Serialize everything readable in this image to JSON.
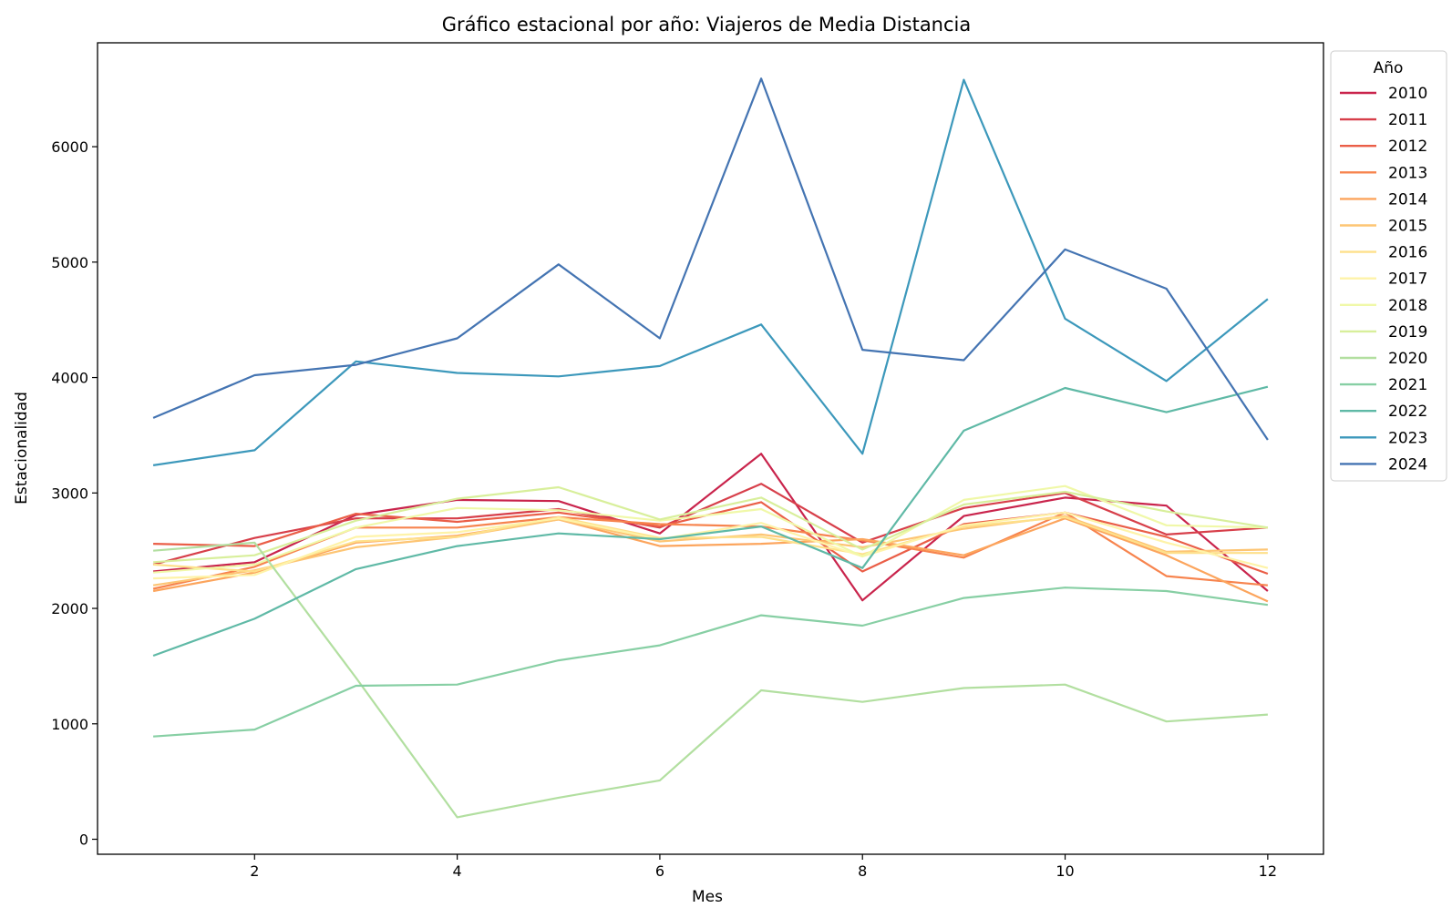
{
  "chart_data": {
    "type": "line",
    "title": "Gráfico estacional por año: Viajeros de Media Distancia",
    "xlabel": "Mes",
    "ylabel": "Estacionalidad",
    "x": [
      1,
      2,
      3,
      4,
      5,
      6,
      7,
      8,
      9,
      10,
      11,
      12
    ],
    "xlim": [
      0.45,
      12.55
    ],
    "ylim": [
      -130,
      6900
    ],
    "xticks": [
      2,
      4,
      6,
      8,
      10,
      12
    ],
    "yticks": [
      0,
      1000,
      2000,
      3000,
      4000,
      5000,
      6000
    ],
    "grid": false,
    "legend": {
      "title": "Año",
      "placement": "outside-right-top"
    },
    "series": [
      {
        "name": "2010",
        "color": "#c9244c",
        "values": [
          2320,
          2400,
          2810,
          2940,
          2930,
          2650,
          3340,
          2070,
          2800,
          2960,
          2890,
          2150
        ]
      },
      {
        "name": "2011",
        "color": "#d73f4a",
        "values": [
          2380,
          2610,
          2780,
          2780,
          2860,
          2700,
          3080,
          2570,
          2870,
          3000,
          2640,
          2700
        ]
      },
      {
        "name": "2012",
        "color": "#ea5e47",
        "values": [
          2560,
          2540,
          2820,
          2750,
          2830,
          2710,
          2920,
          2320,
          2730,
          2830,
          2620,
          2300
        ]
      },
      {
        "name": "2013",
        "color": "#f7844e",
        "values": [
          2170,
          2360,
          2700,
          2700,
          2790,
          2730,
          2710,
          2590,
          2440,
          2830,
          2280,
          2200
        ]
      },
      {
        "name": "2014",
        "color": "#fca55d",
        "values": [
          2150,
          2310,
          2570,
          2630,
          2770,
          2540,
          2560,
          2600,
          2460,
          2780,
          2460,
          2060
        ]
      },
      {
        "name": "2015",
        "color": "#fdc574",
        "values": [
          2200,
          2330,
          2530,
          2620,
          2770,
          2580,
          2640,
          2530,
          2690,
          2800,
          2490,
          2510
        ]
      },
      {
        "name": "2016",
        "color": "#fee08b",
        "values": [
          2380,
          2320,
          2580,
          2620,
          2790,
          2610,
          2620,
          2470,
          2710,
          2790,
          2480,
          2480
        ]
      },
      {
        "name": "2017",
        "color": "#fef3a8",
        "values": [
          2260,
          2290,
          2620,
          2660,
          2780,
          2600,
          2740,
          2450,
          2720,
          2830,
          2570,
          2350
        ]
      },
      {
        "name": "2018",
        "color": "#f0f8a8",
        "values": [
          2310,
          2380,
          2700,
          2870,
          2850,
          2760,
          2860,
          2450,
          2940,
          3060,
          2720,
          2700
        ]
      },
      {
        "name": "2019",
        "color": "#d8ef9b",
        "values": [
          2400,
          2460,
          2760,
          2950,
          3050,
          2770,
          2960,
          2510,
          2900,
          3010,
          2840,
          2700
        ]
      },
      {
        "name": "2020",
        "color": "#b2dfa0",
        "values": [
          2500,
          2570,
          1400,
          190,
          360,
          510,
          1290,
          1190,
          1310,
          1340,
          1020,
          1080
        ]
      },
      {
        "name": "2021",
        "color": "#87cfa4",
        "values": [
          890,
          950,
          1330,
          1340,
          1550,
          1680,
          1940,
          1850,
          2090,
          2180,
          2150,
          2030
        ]
      },
      {
        "name": "2022",
        "color": "#5fb9a6",
        "values": [
          1590,
          1910,
          2340,
          2540,
          2650,
          2600,
          2710,
          2350,
          3540,
          3910,
          3700,
          3920
        ]
      },
      {
        "name": "2023",
        "color": "#3c98bb",
        "values": [
          3240,
          3370,
          4140,
          4040,
          4010,
          4100,
          4460,
          3340,
          6580,
          4510,
          3970,
          4680
        ]
      },
      {
        "name": "2024",
        "color": "#4474b2",
        "values": [
          3650,
          4020,
          4110,
          4340,
          4980,
          4340,
          6590,
          4240,
          4150,
          5110,
          4770,
          3460
        ]
      }
    ]
  }
}
